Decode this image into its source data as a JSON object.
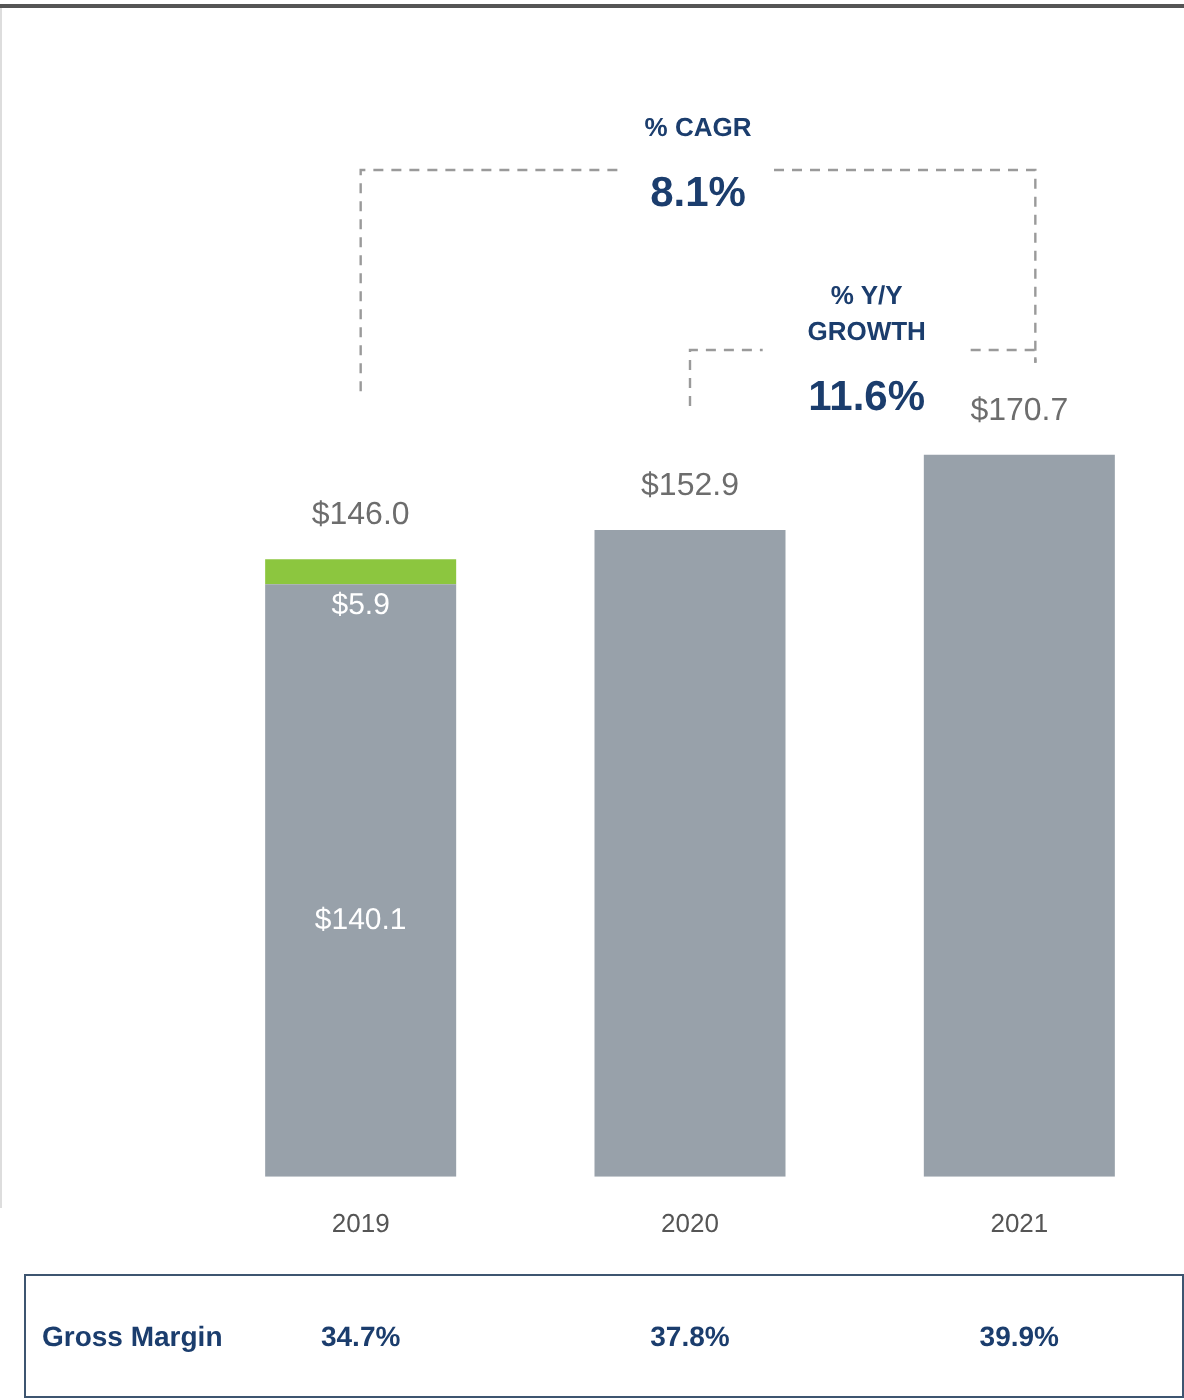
{
  "chart_data": {
    "type": "bar",
    "stacked": true,
    "categories": [
      "2019",
      "2020",
      "2021"
    ],
    "series": [
      {
        "color": "#98a1aa",
        "values": [
          140.1,
          152.9,
          170.7
        ],
        "value_labels": [
          "$140.1",
          null,
          null
        ]
      },
      {
        "color": "#8cc63f",
        "values": [
          5.9,
          null,
          null
        ],
        "value_labels": [
          "$5.9",
          null,
          null
        ]
      }
    ],
    "totals": [
      "$146.0",
      "$152.9",
      "$170.7"
    ],
    "annotations": [
      "% CAGR",
      "8.1%",
      "% Y/Y GROWTH",
      "11.6%",
      "Gross Margin",
      "34.7%",
      "37.8%",
      "39.9%"
    ],
    "grid": false,
    "legend": false
  }
}
